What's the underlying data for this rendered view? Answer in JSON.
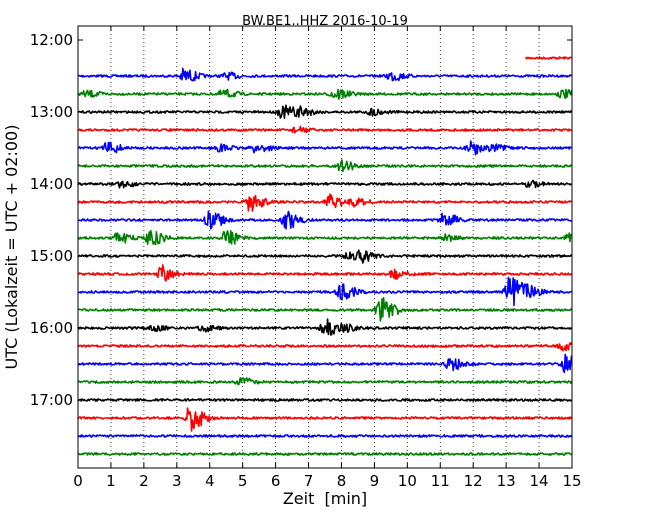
{
  "chart_data": {
    "type": "line",
    "title": "BW.BE1..HHZ 2016-10-19",
    "xlabel": "Zeit  [min]",
    "ylabel": "UTC (Lokalzeit = UTC + 02:00)",
    "xlim": [
      0,
      15
    ],
    "x_ticks": [
      0,
      1,
      2,
      3,
      4,
      5,
      6,
      7,
      8,
      9,
      10,
      11,
      12,
      13,
      14,
      15
    ],
    "y_ticks": [
      "12:00",
      "13:00",
      "14:00",
      "15:00",
      "16:00",
      "17:00"
    ],
    "grid": "x-dotted",
    "trace_colors": [
      "#ff0000",
      "#0000ff",
      "#008000",
      "#000000"
    ],
    "traces": [
      {
        "start": "12:15",
        "end_min": 15,
        "color": "#ff0000",
        "start_min": 13.6
      },
      {
        "start": "12:30",
        "color": "#0000ff",
        "events": [
          [
            3.2,
            7
          ],
          [
            4.5,
            3
          ],
          [
            9.5,
            5
          ]
        ]
      },
      {
        "start": "12:45",
        "color": "#008000",
        "events": [
          [
            0.25,
            3
          ],
          [
            4.4,
            4
          ],
          [
            7.8,
            6
          ],
          [
            14.7,
            4
          ]
        ]
      },
      {
        "start": "13:00",
        "color": "#000000",
        "events": [
          [
            6.2,
            6
          ],
          [
            6.7,
            5
          ],
          [
            8.9,
            3
          ]
        ]
      },
      {
        "start": "13:15",
        "color": "#ff0000",
        "events": [
          [
            6.6,
            3
          ]
        ]
      },
      {
        "start": "13:30",
        "color": "#0000ff",
        "events": [
          [
            0.9,
            6
          ],
          [
            4.3,
            3
          ],
          [
            5.4,
            5
          ],
          [
            11.9,
            7
          ],
          [
            12.6,
            3
          ]
        ]
      },
      {
        "start": "13:45",
        "color": "#008000",
        "events": [
          [
            8.0,
            5
          ]
        ]
      },
      {
        "start": "14:00",
        "color": "#000000",
        "events": [
          [
            1.3,
            3
          ],
          [
            13.7,
            3
          ]
        ]
      },
      {
        "start": "14:15",
        "color": "#ff0000",
        "events": [
          [
            5.2,
            9
          ],
          [
            7.6,
            7
          ],
          [
            8.4,
            4
          ]
        ]
      },
      {
        "start": "14:30",
        "color": "#0000ff",
        "events": [
          [
            4.0,
            9
          ],
          [
            6.3,
            9
          ],
          [
            11.1,
            7
          ]
        ]
      },
      {
        "start": "14:45",
        "color": "#008000",
        "events": [
          [
            1.2,
            5
          ],
          [
            2.2,
            8
          ],
          [
            4.5,
            8
          ],
          [
            11.1,
            3
          ],
          [
            14.9,
            4
          ]
        ]
      },
      {
        "start": "15:00",
        "color": "#000000",
        "events": [
          [
            8.2,
            3
          ],
          [
            8.6,
            5
          ]
        ]
      },
      {
        "start": "15:15",
        "color": "#ff0000",
        "events": [
          [
            2.5,
            9
          ],
          [
            9.6,
            5
          ]
        ]
      },
      {
        "start": "15:30",
        "color": "#0000ff",
        "events": [
          [
            8.0,
            8
          ],
          [
            13.1,
            17
          ],
          [
            13.6,
            7
          ]
        ]
      },
      {
        "start": "15:45",
        "color": "#008000",
        "events": [
          [
            9.2,
            14
          ]
        ]
      },
      {
        "start": "16:00",
        "color": "#000000",
        "events": [
          [
            2.2,
            3
          ],
          [
            3.8,
            3
          ],
          [
            7.5,
            8
          ],
          [
            8.1,
            3
          ]
        ]
      },
      {
        "start": "16:15",
        "color": "#ff0000",
        "events": [
          [
            14.7,
            4
          ]
        ]
      },
      {
        "start": "16:30",
        "color": "#0000ff",
        "events": [
          [
            11.3,
            7
          ],
          [
            14.8,
            9
          ]
        ]
      },
      {
        "start": "16:45",
        "color": "#008000",
        "events": [
          [
            4.9,
            4
          ]
        ]
      },
      {
        "start": "17:00",
        "color": "#000000",
        "events": []
      },
      {
        "start": "17:15",
        "color": "#ff0000",
        "events": [
          [
            3.4,
            12
          ]
        ]
      },
      {
        "start": "17:30",
        "color": "#0000ff",
        "events": []
      },
      {
        "start": "17:45",
        "color": "#008000",
        "events": []
      }
    ]
  }
}
